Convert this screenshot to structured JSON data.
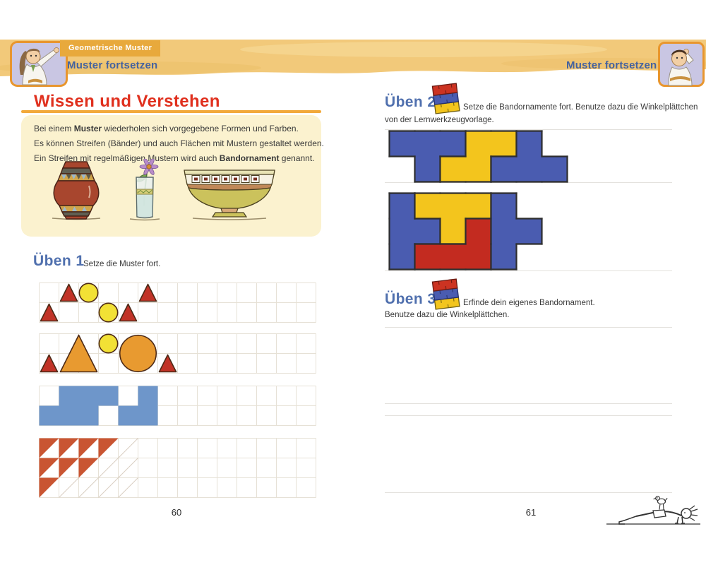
{
  "header": {
    "category_tab": "Geometrische Muster",
    "topic_left": "Muster fortsetzen",
    "topic_right": "Muster fortsetzen"
  },
  "left_page": {
    "page_number": "60",
    "knowledge": {
      "title": "Wissen und Verstehen",
      "line1_pre": "Bei einem ",
      "line1_bold": "Muster",
      "line1_post": " wiederholen sich vorgegebene Formen und Farben.",
      "line2": "Es können Streifen (Bänder) und auch Flächen mit Mustern gestaltet werden.",
      "line3_pre": "Ein Streifen mit regelmäßigen Mustern wird auch ",
      "line3_bold": "Bandornament",
      "line3_post": " genannt."
    },
    "ueben1": {
      "label": "Üben 1",
      "instruction": "Setze die Muster fort."
    }
  },
  "right_page": {
    "page_number": "61",
    "ueben2": {
      "label": "Üben 2",
      "instruction_line1": "Setze die Bandornamente fort. Benutze dazu die Winkelplättchen",
      "instruction_line2": "von der Lernwerkzeugvorlage."
    },
    "ueben3": {
      "label": "Üben 3",
      "instruction_line1": "Erfinde dein eigenes Bandornament.",
      "instruction_line2": "Benutze dazu die Winkelplättchen."
    }
  },
  "colors": {
    "banner": "#f2c97a",
    "tab": "#e8a93c",
    "heading_red": "#e0301e",
    "topic_blue": "#44629f",
    "rule_orange": "#f2a93b",
    "infobox_bg": "#fbf2cf",
    "grid_line": "#e6e1d6",
    "faint_line": "#d9cfc2",
    "shape_outline": "#4d2a16",
    "shape_red": "#c13327",
    "shape_yellow": "#f2e135",
    "shape_orange": "#e89a30",
    "shape_blue": "#6e96ca",
    "half_triangle": "#c95532",
    "band_blue": "#4a5cb0",
    "band_yellow": "#f3c51d",
    "band_red": "#c32b20",
    "band_outline": "#2e2e2e"
  },
  "patterns": {
    "grids": [
      {
        "id": "grid1",
        "cols": 14,
        "rows": 2,
        "cell": 28,
        "shapes": [
          {
            "type": "triangle",
            "col": 1,
            "row": 2,
            "size": 1,
            "color": "shape_red"
          },
          {
            "type": "triangle",
            "col": 2,
            "row": 1,
            "size": 1,
            "color": "shape_red"
          },
          {
            "type": "circle",
            "col": 3,
            "row": 1,
            "size": 1,
            "color": "shape_yellow"
          },
          {
            "type": "circle",
            "col": 4,
            "row": 2,
            "size": 1,
            "color": "shape_yellow"
          },
          {
            "type": "triangle",
            "col": 5,
            "row": 2,
            "size": 1,
            "color": "shape_red"
          },
          {
            "type": "triangle",
            "col": 6,
            "row": 1,
            "size": 1,
            "color": "shape_red"
          }
        ]
      },
      {
        "id": "grid2",
        "cols": 14,
        "rows": 2,
        "cell": 28,
        "shapes": [
          {
            "type": "triangle",
            "col": 1,
            "row": 2,
            "size": 1,
            "color": "shape_red"
          },
          {
            "type": "triangle",
            "col": 2,
            "row": 1,
            "size": 2,
            "color": "shape_orange"
          },
          {
            "type": "circle",
            "col": 4,
            "row": 1,
            "size": 1,
            "color": "shape_yellow"
          },
          {
            "type": "circle",
            "col": 5,
            "row": 1,
            "size": 2,
            "color": "shape_orange"
          },
          {
            "type": "triangle",
            "col": 7,
            "row": 2,
            "size": 1,
            "color": "shape_red"
          }
        ]
      },
      {
        "id": "grid3",
        "cols": 14,
        "rows": 2,
        "cell": 28,
        "color": "shape_blue",
        "filled_cells": [
          [
            1,
            2
          ],
          [
            2,
            2
          ],
          [
            3,
            2
          ],
          [
            2,
            1
          ],
          [
            3,
            1
          ],
          [
            4,
            1
          ],
          [
            5,
            2
          ],
          [
            6,
            2
          ],
          [
            6,
            1
          ]
        ]
      },
      {
        "id": "grid4",
        "cols": 14,
        "rows": 3,
        "cell": 28,
        "filled_triangles": [
          [
            1,
            1
          ],
          [
            2,
            1
          ],
          [
            3,
            1
          ],
          [
            4,
            1
          ],
          [
            1,
            2
          ],
          [
            2,
            2
          ],
          [
            3,
            2
          ],
          [
            1,
            3
          ]
        ],
        "faint_triangles": [
          [
            5,
            1
          ],
          [
            4,
            2
          ],
          [
            5,
            2
          ],
          [
            2,
            3
          ],
          [
            3,
            3
          ],
          [
            4,
            3
          ],
          [
            5,
            3
          ]
        ]
      }
    ],
    "bands": [
      {
        "id": "band1",
        "cols": 7,
        "rows": 2,
        "cell": 36,
        "pieces": [
          {
            "color": "band_blue",
            "cells": [
              [
                1,
                1
              ],
              [
                2,
                1
              ],
              [
                3,
                1
              ],
              [
                2,
                2
              ]
            ]
          },
          {
            "color": "band_yellow",
            "cells": [
              [
                4,
                1
              ],
              [
                5,
                1
              ],
              [
                3,
                2
              ],
              [
                4,
                2
              ]
            ]
          },
          {
            "color": "band_blue",
            "cells": [
              [
                6,
                1
              ],
              [
                5,
                2
              ],
              [
                6,
                2
              ],
              [
                7,
                2
              ]
            ]
          }
        ]
      },
      {
        "id": "band2",
        "cols": 6,
        "rows": 3,
        "cell": 36,
        "pieces": [
          {
            "color": "band_blue",
            "cells": [
              [
                1,
                1
              ],
              [
                1,
                2
              ],
              [
                1,
                3
              ],
              [
                2,
                2
              ]
            ]
          },
          {
            "color": "band_yellow",
            "cells": [
              [
                2,
                1
              ],
              [
                3,
                1
              ],
              [
                4,
                1
              ],
              [
                3,
                2
              ]
            ]
          },
          {
            "color": "band_red",
            "cells": [
              [
                4,
                2
              ],
              [
                2,
                3
              ],
              [
                3,
                3
              ],
              [
                4,
                3
              ]
            ]
          },
          {
            "color": "band_blue",
            "cells": [
              [
                5,
                1
              ],
              [
                5,
                2
              ],
              [
                5,
                3
              ],
              [
                6,
                2
              ]
            ]
          }
        ]
      }
    ]
  }
}
